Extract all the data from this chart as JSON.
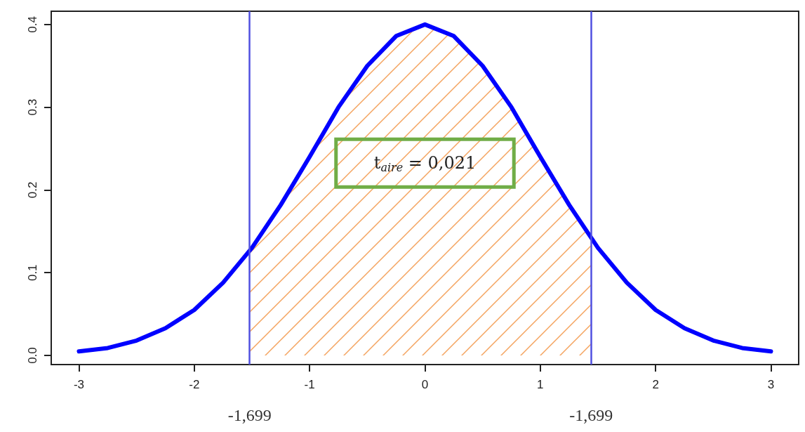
{
  "chart_data": {
    "type": "line",
    "xlim": [
      -3.24,
      3.24
    ],
    "ylim": [
      -0.011,
      0.416
    ],
    "xticks": [
      -3,
      -2,
      -1,
      0,
      1,
      2,
      3
    ],
    "yticks": [
      {
        "value": 0,
        "label": "0.0"
      },
      0.1,
      0.2,
      0.3,
      0.4
    ],
    "marker": "none",
    "line_style": "solid",
    "series": [
      {
        "color": "#0000ff",
        "x": [
          -3,
          -2.75,
          -2.5,
          -2.25,
          -2,
          -1.75,
          -1.5,
          -1.25,
          -1,
          -0.75,
          -0.5,
          -0.25,
          0,
          0.25,
          0.5,
          0.75,
          1,
          1.25,
          1.5,
          1.75,
          2,
          2.25,
          2.5,
          2.75,
          3
        ],
        "values": [
          0.005,
          0.009,
          0.018,
          0.033,
          0.055,
          0.088,
          0.13,
          0.182,
          0.24,
          0.3,
          0.35,
          0.386,
          0.4,
          0.386,
          0.35,
          0.3,
          0.24,
          0.182,
          0.13,
          0.088,
          0.055,
          0.033,
          0.018,
          0.009,
          0.005
        ]
      },
      {
        "type": "area",
        "color": "#f4a460",
        "x": [
          -1.52,
          -1.25,
          -1,
          -0.75,
          -0.5,
          -0.25,
          0,
          0.25,
          0.5,
          0.75,
          1,
          1.25,
          1.44
        ],
        "values": [
          0.126,
          0.182,
          0.24,
          0.3,
          0.35,
          0.386,
          0.4,
          0.386,
          0.35,
          0.3,
          0.24,
          0.182,
          0.142
        ]
      }
    ],
    "ref_lines": [
      {
        "axis": "x",
        "value": -1.52,
        "color": "#5050e0"
      },
      {
        "axis": "x",
        "value": 1.44,
        "color": "#5050e0"
      }
    ],
    "annotations": [
      "t$_{aire}$ = 0,021",
      "-1,699",
      "-1,699"
    ]
  }
}
